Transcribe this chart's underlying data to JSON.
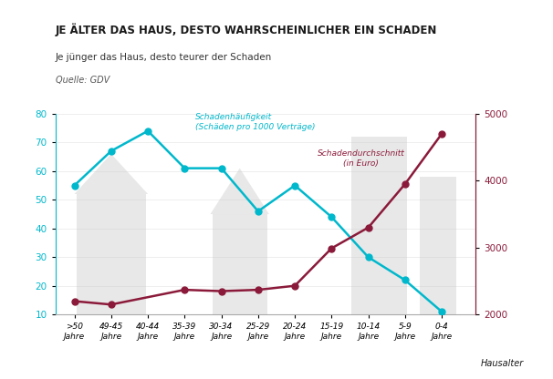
{
  "categories": [
    ">50\nJahre",
    "49-45\nJahre",
    "40-44\nJahre",
    "35-39\nJahre",
    "30-34\nJahre",
    "25-29\nJahre",
    "20-24\nJahre",
    "15-19\nJahre",
    "10-14\nJahre",
    "5-9\nJahre",
    "0-4\nJahre"
  ],
  "haeufigkeit": [
    55,
    67,
    74,
    61,
    61,
    46,
    55,
    44,
    30,
    22,
    11
  ],
  "kosten": [
    2200,
    2150,
    null,
    2370,
    2350,
    2370,
    2430,
    2990,
    3300,
    3950,
    4700
  ],
  "title": "JE ÄLTER DAS HAUS, DESTO WAHRSCHEINLICHER EIN SCHADEN",
  "subtitle": "Je jünger das Haus, desto teurer der Schaden",
  "source": "Quelle: GDV",
  "xlabel": "Hausalter",
  "ylim_left": [
    10,
    80
  ],
  "ylim_right": [
    2000,
    5000
  ],
  "yticks_left": [
    10,
    20,
    30,
    40,
    50,
    60,
    70,
    80
  ],
  "yticks_right": [
    2000,
    3000,
    4000,
    5000
  ],
  "color_haeufigkeit": "#00b8cc",
  "color_kosten": "#8b1a3a",
  "annotation_haeufigkeit": "Schadenhäufigkeit\n(Schäden pro 1000 Verträge)",
  "annotation_kosten": "Schadendurchschnitt\n(in Euro)",
  "bg_color": "#ffffff",
  "house_color": "#cccccc",
  "house_alpha": 0.45
}
